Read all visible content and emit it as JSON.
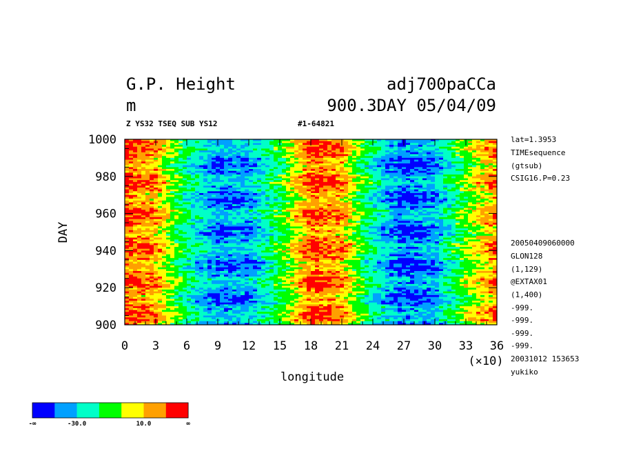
{
  "header": {
    "title_left": "G.P. Height",
    "title_right": "adj700paCCa",
    "units": "m",
    "subtitle_right": "900.3DAY 05/04/09",
    "small_left": "Z YS32 TSEQ SUB YS12",
    "small_right": "#1-64821"
  },
  "side_info": {
    "top": [
      "lat=1.3953",
      "TIMEsequence",
      "(gtsub)",
      "CSIG16.P=0.23"
    ],
    "bottom": [
      "20050409060000",
      "GLON128",
      "(1,129)",
      "@EXTAX01",
      "(1,400)",
      "-999.",
      "-999.",
      "-999.",
      "-999.",
      "20031012 153653",
      "yukiko"
    ]
  },
  "colorbar": {
    "colors": [
      "#0000ff",
      "#00a0ff",
      "#00ffc8",
      "#00ff00",
      "#ffff00",
      "#ffa000",
      "#ff0000"
    ],
    "labels": [
      "-∞",
      "-30.0",
      "10.0",
      "∞"
    ]
  },
  "chart_data": {
    "type": "heatmap",
    "title": "G.P. Height",
    "xlabel": "longitude",
    "ylabel": "DAY",
    "x_ticks": [
      "0",
      "3",
      "6",
      "9",
      "12",
      "15",
      "18",
      "21",
      "24",
      "27",
      "30",
      "33",
      "36"
    ],
    "x_multiplier": "(×10)",
    "y_ticks": [
      "900",
      "920",
      "940",
      "960",
      "980",
      "1000"
    ],
    "xlim": [
      0,
      360
    ],
    "ylim": [
      900,
      1000
    ],
    "anomaly_by_longitude": {
      "longitude": [
        0,
        30,
        60,
        90,
        120,
        150,
        180,
        210,
        240,
        270,
        300,
        330,
        360
      ],
      "value": [
        40,
        30,
        -15,
        -40,
        -35,
        -5,
        40,
        30,
        -20,
        -45,
        -35,
        5,
        35
      ]
    }
  }
}
